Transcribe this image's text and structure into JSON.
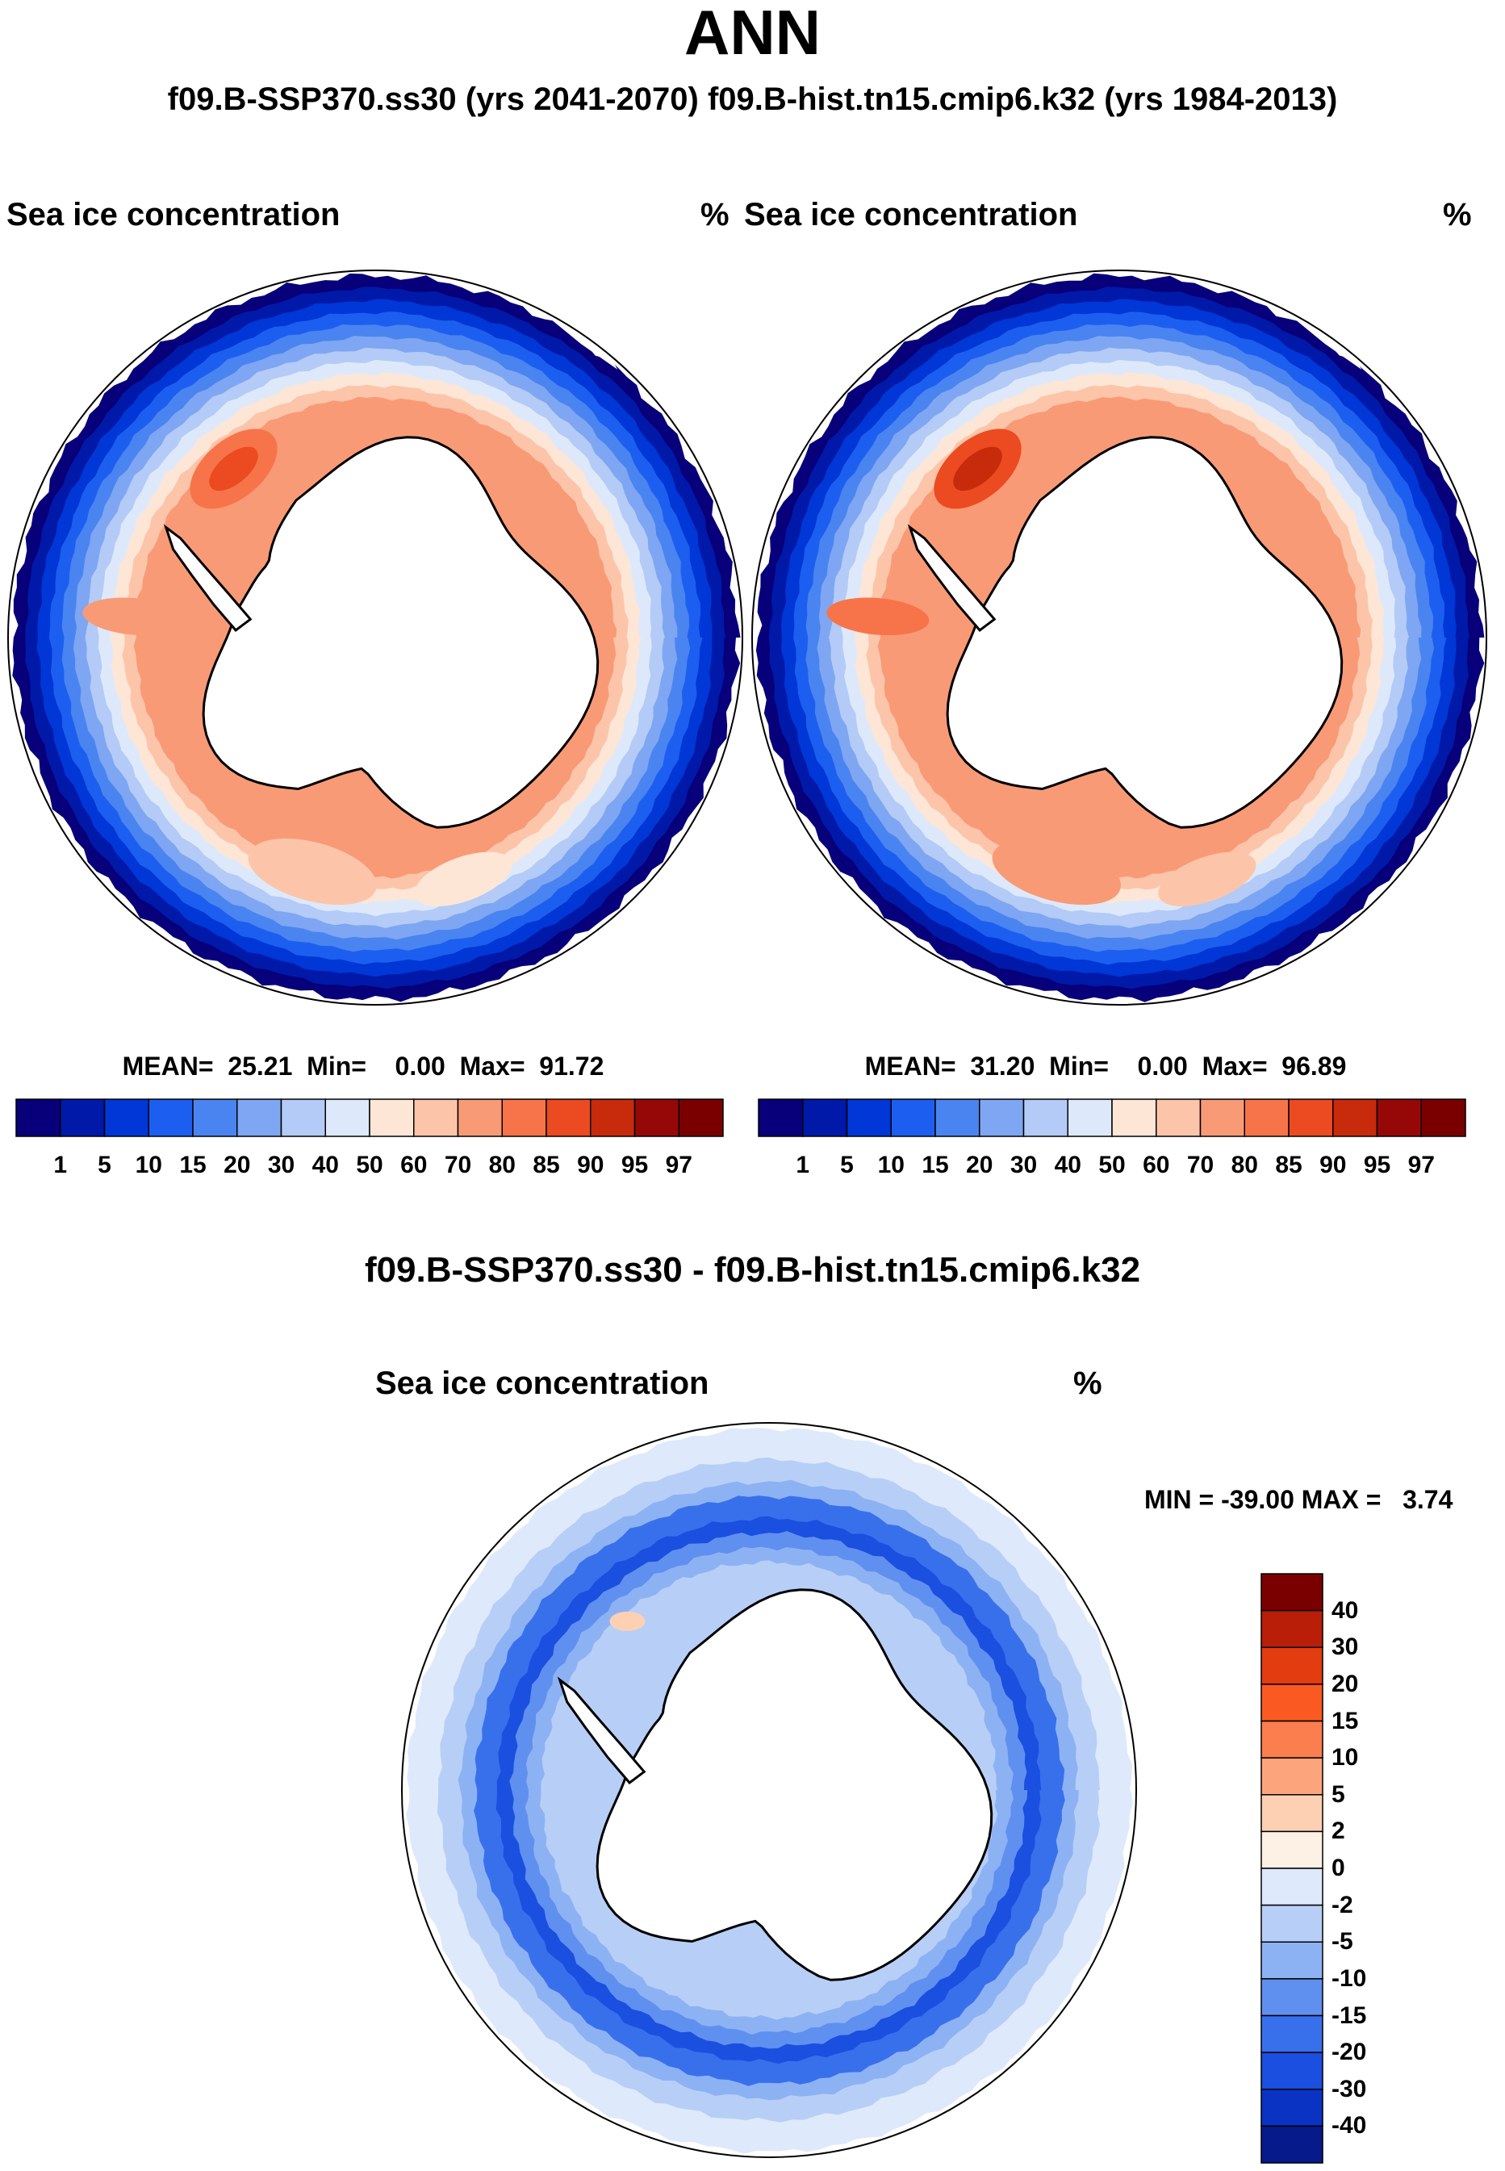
{
  "header": {
    "title": "ANN",
    "subtitle": "f09.B-SSP370.ss30 (yrs 2041-2070)  f09.B-hist.tn15.cmip6.k32 (yrs 1984-2013)"
  },
  "panels": {
    "left": {
      "variable": "Sea ice concentration",
      "units": "%",
      "stats_text": "MEAN=  25.21  Min=    0.00  Max=  91.72",
      "mean": 25.21,
      "min": 0.0,
      "max": 91.72,
      "ice_scale": 0.92,
      "max_hotspot_level": 12
    },
    "right": {
      "variable": "Sea ice concentration",
      "units": "%",
      "stats_text": "MEAN=  31.20  Min=    0.00  Max=  96.89",
      "mean": 31.2,
      "min": 0.0,
      "max": 96.89,
      "ice_scale": 1.0,
      "max_hotspot_level": 13
    },
    "diff": {
      "title": "f09.B-SSP370.ss30 - f09.B-hist.tn15.cmip6.k32",
      "variable": "Sea ice concentration",
      "units": "%",
      "stats_text": "MIN = -39.00 MAX =   3.74",
      "min": -39.0,
      "max": 3.74
    }
  },
  "colorbars": {
    "concentration": {
      "labels": [
        "1",
        "5",
        "10",
        "15",
        "20",
        "30",
        "40",
        "50",
        "60",
        "70",
        "80",
        "85",
        "90",
        "95",
        "97"
      ],
      "colors": [
        "#08007a",
        "#0019a8",
        "#0037d6",
        "#1c5ff0",
        "#4a84f0",
        "#7ea6f2",
        "#b3cbf6",
        "#dde9fb",
        "#fde6d6",
        "#fcc5aa",
        "#f99a76",
        "#f7744a",
        "#ec4a20",
        "#c82a0c",
        "#960808",
        "#7a0000"
      ]
    },
    "difference": {
      "labels": [
        "40",
        "30",
        "20",
        "15",
        "10",
        "5",
        "2",
        "0",
        "-2",
        "-5",
        "-10",
        "-15",
        "-20",
        "-30",
        "-40"
      ],
      "colors": [
        "#7a0000",
        "#b81e08",
        "#e23c10",
        "#fa5a22",
        "#fb7e4e",
        "#fca47c",
        "#fdd0b4",
        "#fdf0e4",
        "#deeafb",
        "#b7cff7",
        "#8db2f3",
        "#5f90ef",
        "#3870ec",
        "#1a4fe0",
        "#0a33c4",
        "#061a8c"
      ]
    }
  },
  "chart_data": {
    "type": "polar-contour-map",
    "region": "Antarctic (southern hemisphere polar stereographic)",
    "season": "ANN",
    "units": "%",
    "series": [
      {
        "name": "f09.B-SSP370.ss30 (yrs 2041-2070)",
        "mean": 25.21,
        "min": 0.0,
        "max": 91.72
      },
      {
        "name": "f09.B-hist.tn15.cmip6.k32 (yrs 1984-2013)",
        "mean": 31.2,
        "min": 0.0,
        "max": 96.89
      },
      {
        "name": "f09.B-SSP370.ss30 - f09.B-hist.tn15.cmip6.k32",
        "min": -39.0,
        "max": 3.74
      }
    ]
  }
}
